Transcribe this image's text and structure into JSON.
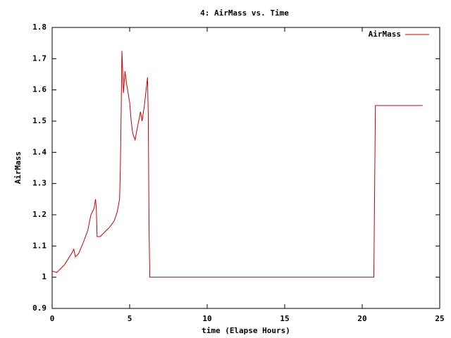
{
  "chart_data": {
    "type": "line",
    "title": "4: AirMass vs. Time",
    "x_label": "time (Elapse Hours)",
    "y_label": "AirMass",
    "legend": "top-right",
    "xlim": [
      0,
      25
    ],
    "xticks": [
      0,
      5,
      10,
      15,
      20,
      25
    ],
    "ylim": [
      0.9,
      1.8
    ],
    "yticks": [
      0.9,
      1,
      1.1,
      1.2,
      1.3,
      1.4,
      1.5,
      1.6,
      1.7,
      1.8
    ],
    "series": [
      {
        "name": "AirMass",
        "color": "#cc0000",
        "x": [
          0,
          0.3,
          0.4,
          0.8,
          1.3,
          1.4,
          1.5,
          1.7,
          2.0,
          2.3,
          2.5,
          2.7,
          2.8,
          2.85,
          2.9,
          3.1,
          3.3,
          3.7,
          4.0,
          4.2,
          4.35,
          4.4,
          4.45,
          4.5,
          4.6,
          4.7,
          4.8,
          5.0,
          5.1,
          5.2,
          5.35,
          5.5,
          5.7,
          5.8,
          5.95,
          6.15,
          6.2,
          6.25,
          6.3,
          20.75,
          20.85,
          23.9
        ],
        "values": [
          1.02,
          1.015,
          1.02,
          1.04,
          1.08,
          1.09,
          1.065,
          1.075,
          1.11,
          1.15,
          1.2,
          1.22,
          1.25,
          1.22,
          1.13,
          1.13,
          1.14,
          1.16,
          1.18,
          1.21,
          1.25,
          1.35,
          1.52,
          1.725,
          1.59,
          1.66,
          1.62,
          1.56,
          1.5,
          1.46,
          1.44,
          1.48,
          1.53,
          1.5,
          1.55,
          1.64,
          1.52,
          1.16,
          1.0,
          1.0,
          1.55,
          1.55
        ]
      }
    ]
  }
}
